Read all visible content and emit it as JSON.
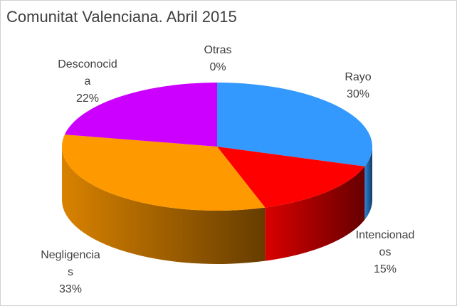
{
  "chart_data": {
    "type": "pie",
    "title": "Comunitat Valenciana. Abril 2015",
    "categories": [
      "Rayo",
      "Intencionados",
      "Negligencias",
      "Desconocida",
      "Otras"
    ],
    "values": [
      30,
      15,
      33,
      22,
      0
    ],
    "value_labels": [
      "30%",
      "15%",
      "33%",
      "22%",
      "0%"
    ],
    "colors": [
      "#3399ff",
      "#ff0000",
      "#ff9900",
      "#cc00ff",
      "#a0a0a0"
    ]
  }
}
